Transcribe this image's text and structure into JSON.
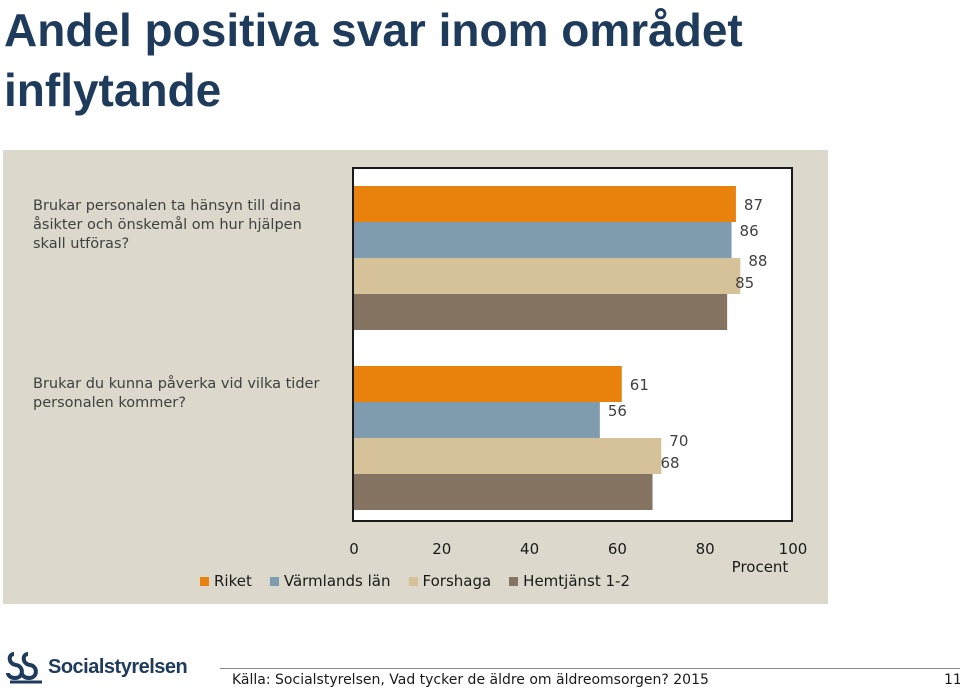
{
  "title": "Andel positiva svar inom området inflytande",
  "chart_data": {
    "type": "bar",
    "orientation": "horizontal",
    "categories": [
      "Brukar personalen ta hänsyn till dina åsikter och önskemål om hur hjälpen skall utföras?",
      "Brukar du kunna påverka vid vilka tider personalen kommer?"
    ],
    "series": [
      {
        "name": "Riket",
        "color": "#e8820c",
        "values": [
          87,
          61
        ]
      },
      {
        "name": "Värmlands län",
        "color": "#7f9cae",
        "values": [
          86,
          56
        ]
      },
      {
        "name": "Forshaga",
        "color": "#d6c298",
        "values": [
          88,
          70
        ]
      },
      {
        "name": "Hemtjänst 1-2",
        "color": "#857462",
        "values": [
          85,
          68
        ]
      }
    ],
    "xlim": [
      0,
      100
    ],
    "xticks": [
      "0",
      "20",
      "40",
      "60",
      "80",
      "100"
    ],
    "xlabel": "Procent",
    "legend_position": "bottom"
  },
  "footer": {
    "logo_text": "Socialstyrelsen",
    "source": "Källa: Socialstyrelsen, Vad tycker de äldre om äldreomsorgen? 2015",
    "page_number": "11"
  }
}
